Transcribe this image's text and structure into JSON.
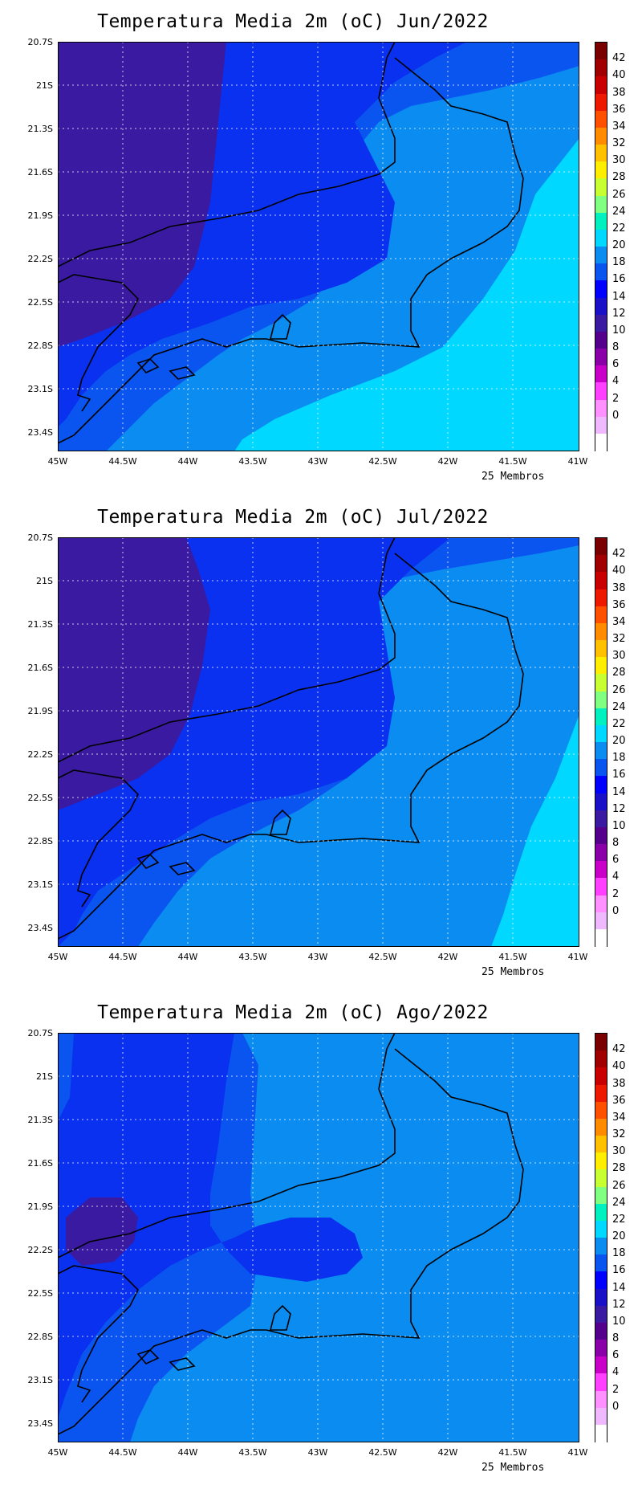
{
  "panels": [
    {
      "title": "Temperatura Media 2m (oC) Jun/2022",
      "footnote": "25 Membros"
    },
    {
      "title": "Temperatura Media 2m (oC) Jul/2022",
      "footnote": "25 Membros"
    },
    {
      "title": "Temperatura Media 2m (oC) Ago/2022",
      "footnote": "25 Membros"
    }
  ],
  "latitudes": [
    "20.7S",
    "21S",
    "21.3S",
    "21.6S",
    "21.9S",
    "22.2S",
    "22.5S",
    "22.8S",
    "23.1S",
    "23.4S"
  ],
  "longitudes": [
    "45W",
    "44.5W",
    "44W",
    "43.5W",
    "43W",
    "42.5W",
    "42W",
    "41.5W",
    "41W"
  ],
  "colorbar": {
    "labels": [
      "42",
      "40",
      "38",
      "36",
      "34",
      "32",
      "30",
      "28",
      "26",
      "24",
      "22",
      "20",
      "18",
      "16",
      "14",
      "12",
      "10",
      "8",
      "6",
      "4",
      "2",
      "0"
    ],
    "colors": [
      "#7a0000",
      "#a00000",
      "#c80000",
      "#ee1a00",
      "#ff5000",
      "#ff8c00",
      "#ffc000",
      "#ffee00",
      "#c8ff30",
      "#80ff80",
      "#00f0c0",
      "#00d8ff",
      "#0a8cf0",
      "#0a55f0",
      "#0000ff",
      "#1a10c8",
      "#3a1aa0",
      "#55008c",
      "#8a00a8",
      "#c800c8",
      "#ff40ff",
      "#ff90ff",
      "#f0b8ff",
      "#ffffff"
    ]
  },
  "zone_colors": {
    "c10": "#3a1aa0",
    "c14": "#1a10c8",
    "c16": "#0a30f0",
    "c18": "#0a55f0",
    "c20": "#0a8cf0",
    "c22": "#00d8ff"
  }
}
